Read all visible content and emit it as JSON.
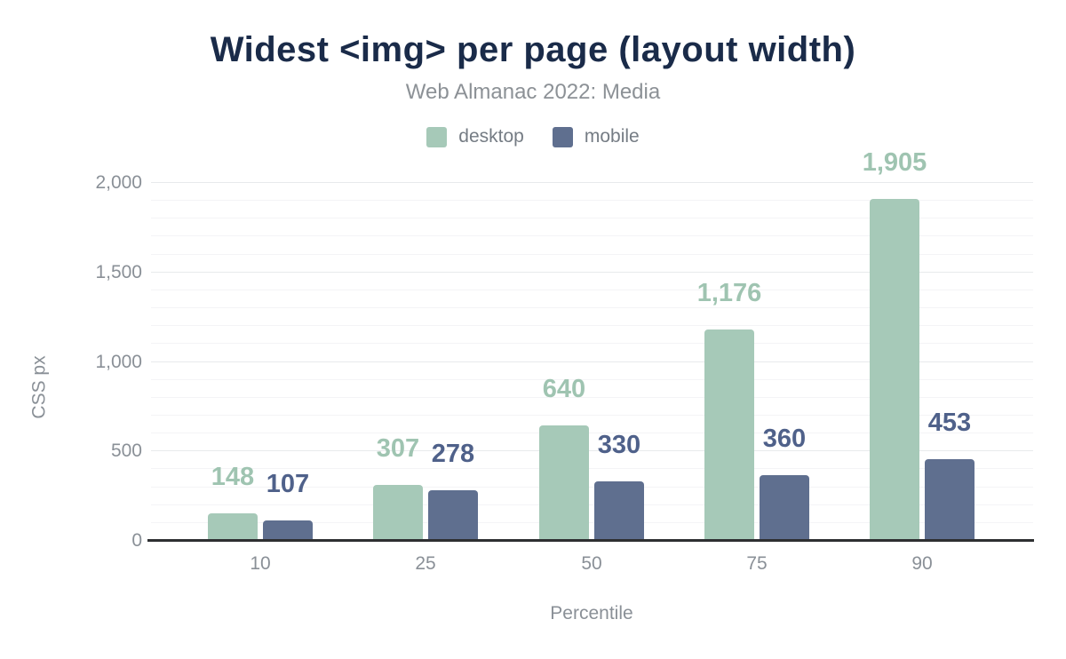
{
  "title": "Widest <img> per page (layout width)",
  "subtitle": "Web Almanac 2022: Media",
  "colors": {
    "title_text": "#1a2b49",
    "subtitle_text": "#8c9196",
    "legend_text": "#757c84",
    "axis_text": "#8a9097",
    "baseline": "#2e2f31",
    "grid_minor": "#f4f4f6",
    "grid_major": "#e8eaec",
    "desktop": "#a6c9b8",
    "desktop_label": "#9fc4b1",
    "mobile": "#5f6f8f",
    "mobile_label": "#4f618a"
  },
  "chart_data": {
    "type": "bar",
    "title": "Widest <img> per page (layout width)",
    "subtitle": "Web Almanac 2022: Media",
    "xlabel": "Percentile",
    "ylabel": "CSS px",
    "categories": [
      "10",
      "25",
      "50",
      "75",
      "90"
    ],
    "series": [
      {
        "name": "desktop",
        "values": [
          148,
          307,
          640,
          1176,
          1905
        ],
        "labels": [
          "148",
          "307",
          "640",
          "1,176",
          "1,905"
        ],
        "color": "#a6c9b8",
        "label_color": "#9fc4b1"
      },
      {
        "name": "mobile",
        "values": [
          107,
          278,
          330,
          360,
          453
        ],
        "labels": [
          "107",
          "278",
          "330",
          "360",
          "453"
        ],
        "color": "#5f6f8f",
        "label_color": "#4f618a"
      }
    ],
    "ylim": [
      0,
      2000
    ],
    "yticks": [
      0,
      500,
      1000,
      1500,
      2000
    ],
    "ytick_labels": [
      "0",
      "500",
      "1,000",
      "1,500",
      "2,000"
    ],
    "grid_minor_step": 100,
    "grid": "horizontal",
    "legend_position": "top"
  }
}
